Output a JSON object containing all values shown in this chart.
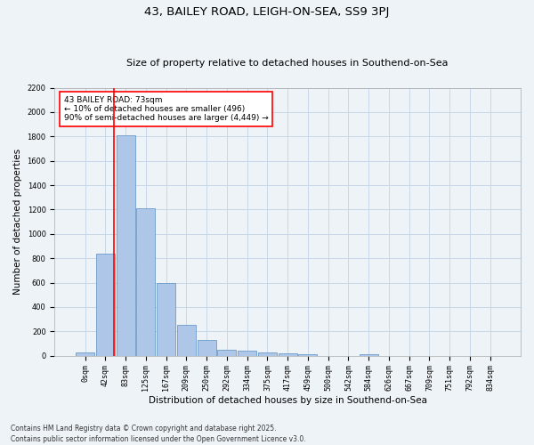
{
  "title": "43, BAILEY ROAD, LEIGH-ON-SEA, SS9 3PJ",
  "subtitle": "Size of property relative to detached houses in Southend-on-Sea",
  "xlabel": "Distribution of detached houses by size in Southend-on-Sea",
  "ylabel": "Number of detached properties",
  "bar_labels": [
    "0sqm",
    "42sqm",
    "83sqm",
    "125sqm",
    "167sqm",
    "209sqm",
    "250sqm",
    "292sqm",
    "334sqm",
    "375sqm",
    "417sqm",
    "459sqm",
    "500sqm",
    "542sqm",
    "584sqm",
    "626sqm",
    "667sqm",
    "709sqm",
    "751sqm",
    "792sqm",
    "834sqm"
  ],
  "bar_heights": [
    25,
    840,
    1810,
    1210,
    600,
    255,
    130,
    50,
    40,
    30,
    20,
    10,
    0,
    0,
    15,
    0,
    0,
    0,
    0,
    0,
    0
  ],
  "bar_color": "#aec6e8",
  "bar_edge_color": "#5a8fc3",
  "grid_color": "#c8d8e8",
  "bg_color": "#eef3f8",
  "vline_x": 1.42,
  "vline_color": "red",
  "annotation_text": "43 BAILEY ROAD: 73sqm\n← 10% of detached houses are smaller (496)\n90% of semi-detached houses are larger (4,449) →",
  "annotation_box_color": "white",
  "annotation_box_edge": "red",
  "ylim": [
    0,
    2200
  ],
  "yticks": [
    0,
    200,
    400,
    600,
    800,
    1000,
    1200,
    1400,
    1600,
    1800,
    2000,
    2200
  ],
  "footnote1": "Contains HM Land Registry data © Crown copyright and database right 2025.",
  "footnote2": "Contains public sector information licensed under the Open Government Licence v3.0.",
  "title_fontsize": 9.5,
  "subtitle_fontsize": 8,
  "tick_fontsize": 6,
  "label_fontsize": 7.5,
  "annot_fontsize": 6.5,
  "footnote_fontsize": 5.5
}
